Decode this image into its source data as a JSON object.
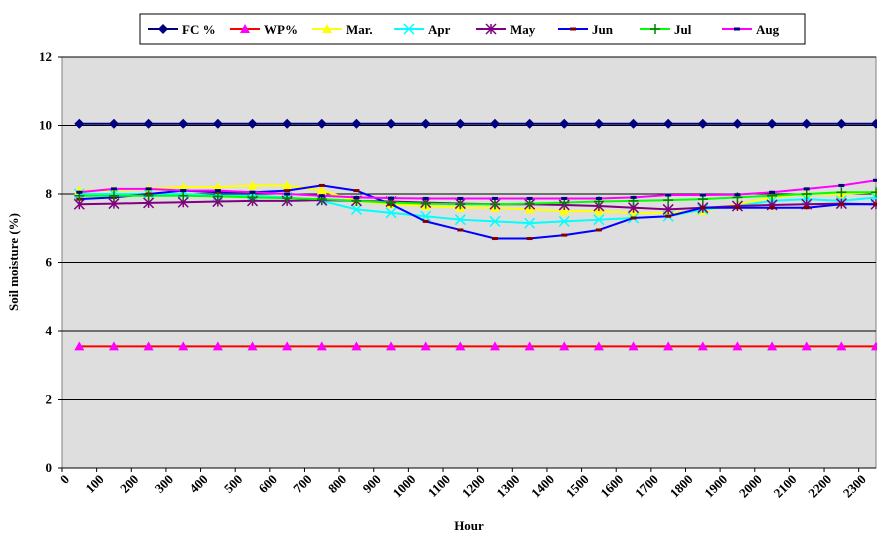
{
  "chart_data": {
    "type": "line",
    "x_label": "Hour",
    "y_label": "Soil moisture (%)",
    "x": [
      50,
      150,
      250,
      350,
      450,
      550,
      650,
      750,
      850,
      950,
      1050,
      1150,
      1250,
      1350,
      1450,
      1550,
      1650,
      1750,
      1850,
      1950,
      2050,
      2150,
      2250,
      2350
    ],
    "xlim": [
      0,
      2350
    ],
    "xticks": [
      0,
      100,
      200,
      300,
      400,
      500,
      600,
      700,
      800,
      900,
      1000,
      1100,
      1200,
      1300,
      1400,
      1500,
      1600,
      1700,
      1800,
      1900,
      2000,
      2100,
      2200,
      2300
    ],
    "ylim": [
      0,
      12
    ],
    "yticks": [
      0,
      2,
      4,
      6,
      8,
      10,
      12
    ],
    "grid": true,
    "legend": "top",
    "series": [
      {
        "name": "FC %",
        "color": "#000080",
        "marker": "diamond",
        "values": [
          10.05,
          10.05,
          10.05,
          10.05,
          10.05,
          10.05,
          10.05,
          10.05,
          10.05,
          10.05,
          10.05,
          10.05,
          10.05,
          10.05,
          10.05,
          10.05,
          10.05,
          10.05,
          10.05,
          10.05,
          10.05,
          10.05,
          10.05,
          10.05
        ]
      },
      {
        "name": "WP%",
        "color": "#ff0000",
        "marker_color": "#ff00ff",
        "marker": "triangle",
        "values": [
          3.55,
          3.55,
          3.55,
          3.55,
          3.55,
          3.55,
          3.55,
          3.55,
          3.55,
          3.55,
          3.55,
          3.55,
          3.55,
          3.55,
          3.55,
          3.55,
          3.55,
          3.55,
          3.55,
          3.55,
          3.55,
          3.55,
          3.55,
          3.55
        ]
      },
      {
        "name": "Mar.",
        "color": "#ffff00",
        "marker": "triangle",
        "values": [
          8.1,
          8.1,
          8.15,
          8.2,
          8.2,
          8.25,
          8.25,
          8.1,
          7.8,
          7.7,
          7.65,
          7.6,
          7.6,
          7.55,
          7.5,
          7.5,
          7.45,
          7.45,
          7.5,
          7.7,
          7.9,
          8.0,
          8.0,
          8.05
        ]
      },
      {
        "name": "Apr",
        "color": "#00ffff",
        "marker": "x",
        "values": [
          8.0,
          8.0,
          8.0,
          8.0,
          7.95,
          7.95,
          7.9,
          7.8,
          7.55,
          7.45,
          7.35,
          7.25,
          7.2,
          7.15,
          7.2,
          7.25,
          7.3,
          7.35,
          7.55,
          7.65,
          7.8,
          7.85,
          7.8,
          7.9
        ]
      },
      {
        "name": "May",
        "color": "#800080",
        "marker": "star",
        "values": [
          7.7,
          7.72,
          7.74,
          7.76,
          7.78,
          7.8,
          7.8,
          7.82,
          7.8,
          7.78,
          7.75,
          7.72,
          7.7,
          7.7,
          7.68,
          7.65,
          7.6,
          7.55,
          7.6,
          7.65,
          7.68,
          7.7,
          7.72,
          7.7
        ]
      },
      {
        "name": "Jun",
        "color": "#0000ff",
        "marker_color": "#800000",
        "marker": "dash",
        "values": [
          7.85,
          7.9,
          8.0,
          8.1,
          8.05,
          8.05,
          8.1,
          8.25,
          8.1,
          7.7,
          7.2,
          6.95,
          6.7,
          6.7,
          6.8,
          6.95,
          7.3,
          7.35,
          7.6,
          7.6,
          7.6,
          7.6,
          7.7,
          7.7
        ]
      },
      {
        "name": "Jul",
        "color": "#00ff00",
        "marker_color": "#008000",
        "marker": "plus",
        "values": [
          7.95,
          7.95,
          7.95,
          7.95,
          7.93,
          7.9,
          7.88,
          7.85,
          7.8,
          7.75,
          7.72,
          7.7,
          7.7,
          7.72,
          7.75,
          7.78,
          7.8,
          7.82,
          7.85,
          7.9,
          7.95,
          8.0,
          8.05,
          8.05
        ]
      },
      {
        "name": "Aug",
        "color": "#ff00ff",
        "marker_color": "#000080",
        "marker": "dash",
        "values": [
          8.05,
          8.15,
          8.15,
          8.1,
          8.1,
          8.05,
          8.0,
          7.95,
          7.9,
          7.88,
          7.87,
          7.87,
          7.87,
          7.87,
          7.87,
          7.87,
          7.9,
          7.97,
          7.97,
          7.98,
          8.05,
          8.15,
          8.25,
          8.4
        ]
      }
    ]
  }
}
